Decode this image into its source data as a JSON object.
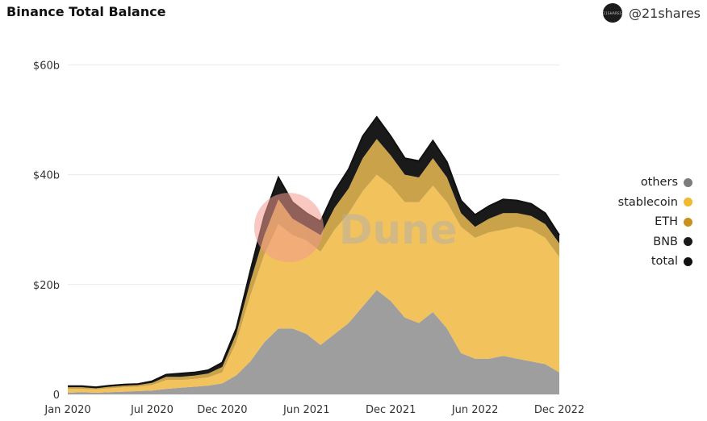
{
  "header": {
    "title": "Binance Total Balance",
    "brand_handle": "@21shares",
    "brand_avatar_text": "21SHARES"
  },
  "watermark": {
    "text": "Dune"
  },
  "chart_data": {
    "type": "area",
    "stacked": true,
    "title": "Binance Total Balance",
    "x_unit": "month",
    "x": [
      "2020-01",
      "2020-02",
      "2020-03",
      "2020-04",
      "2020-05",
      "2020-06",
      "2020-07",
      "2020-08",
      "2020-09",
      "2020-10",
      "2020-11",
      "2020-12",
      "2021-01",
      "2021-02",
      "2021-03",
      "2021-04",
      "2021-05",
      "2021-06",
      "2021-07",
      "2021-08",
      "2021-09",
      "2021-10",
      "2021-11",
      "2021-12",
      "2022-01",
      "2022-02",
      "2022-03",
      "2022-04",
      "2022-05",
      "2022-06",
      "2022-07",
      "2022-08",
      "2022-09",
      "2022-10",
      "2022-11",
      "2022-12"
    ],
    "series": [
      {
        "name": "others",
        "color": "#9e9e9e",
        "values": [
          0.3,
          0.4,
          0.3,
          0.4,
          0.5,
          0.6,
          0.7,
          1.0,
          1.2,
          1.4,
          1.6,
          2.0,
          3.5,
          6.0,
          9.5,
          12.0,
          12.0,
          11.0,
          9.0,
          11.0,
          13.0,
          16.0,
          19.0,
          17.0,
          14.0,
          13.0,
          15.0,
          12.0,
          7.5,
          6.5,
          6.5,
          7.0,
          6.5,
          6.0,
          5.5,
          4.0
        ]
      },
      {
        "name": "stablecoin",
        "color": "#f2c25c",
        "values": [
          0.7,
          0.6,
          0.6,
          0.7,
          0.8,
          0.8,
          1.0,
          1.6,
          1.4,
          1.4,
          1.5,
          2.0,
          6.0,
          12.0,
          16.0,
          19.0,
          17.0,
          17.0,
          17.0,
          19.0,
          20.0,
          21.0,
          21.0,
          21.0,
          21.0,
          22.0,
          23.0,
          23.0,
          23.0,
          22.0,
          23.0,
          23.0,
          24.0,
          24.0,
          23.0,
          21.0
        ]
      },
      {
        "name": "ETH",
        "color": "#c9a24a",
        "values": [
          0.3,
          0.3,
          0.2,
          0.3,
          0.3,
          0.3,
          0.4,
          0.6,
          0.6,
          0.6,
          0.7,
          1.0,
          1.5,
          2.5,
          3.5,
          4.5,
          3.0,
          2.5,
          3.0,
          4.0,
          4.5,
          6.0,
          6.5,
          5.5,
          5.0,
          4.5,
          5.0,
          4.5,
          2.5,
          2.0,
          2.5,
          3.0,
          2.5,
          2.5,
          2.5,
          2.5
        ]
      },
      {
        "name": "BNB",
        "color": "#1a1a1a",
        "values": [
          0.2,
          0.2,
          0.2,
          0.2,
          0.2,
          0.2,
          0.3,
          0.4,
          0.6,
          0.6,
          0.6,
          0.8,
          1.0,
          2.0,
          3.5,
          4.0,
          3.0,
          2.5,
          2.5,
          3.0,
          3.5,
          4.0,
          4.0,
          3.5,
          3.0,
          3.0,
          3.2,
          2.8,
          2.3,
          2.2,
          2.3,
          2.5,
          2.3,
          2.2,
          2.0,
          1.5
        ]
      },
      {
        "name": "total",
        "color": "#111111",
        "values": [
          1.5,
          1.5,
          1.3,
          1.6,
          1.8,
          1.9,
          2.4,
          3.6,
          3.8,
          4.0,
          4.4,
          5.8,
          12.0,
          22.5,
          32.5,
          39.5,
          35.0,
          33.0,
          31.5,
          37.0,
          41.0,
          47.0,
          50.5,
          47.0,
          43.0,
          42.5,
          46.2,
          42.3,
          35.3,
          32.7,
          34.3,
          35.5,
          35.3,
          34.7,
          33.0,
          29.0
        ]
      }
    ],
    "ylim": [
      0,
      63
    ],
    "yticks": [
      0,
      20,
      40,
      60
    ],
    "ytick_labels": [
      "0",
      "$20b",
      "$40b",
      "$60b"
    ],
    "xtick_labels": [
      "Jan 2020",
      "Jul 2020",
      "Dec 2020",
      "Jun 2021",
      "Dec 2021",
      "Jun 2022",
      "Dec 2022"
    ],
    "xtick_dates": [
      "2020-01",
      "2020-07",
      "2020-12",
      "2021-06",
      "2021-12",
      "2022-06",
      "2022-12"
    ],
    "grid": true,
    "legend": "right",
    "legend_items": [
      {
        "name": "others",
        "color": "#7c7c7c"
      },
      {
        "name": "stablecoin",
        "color": "#f0b92f"
      },
      {
        "name": "ETH",
        "color": "#c8911f"
      },
      {
        "name": "BNB",
        "color": "#1a1a1a"
      },
      {
        "name": "total",
        "color": "#111111"
      }
    ]
  }
}
